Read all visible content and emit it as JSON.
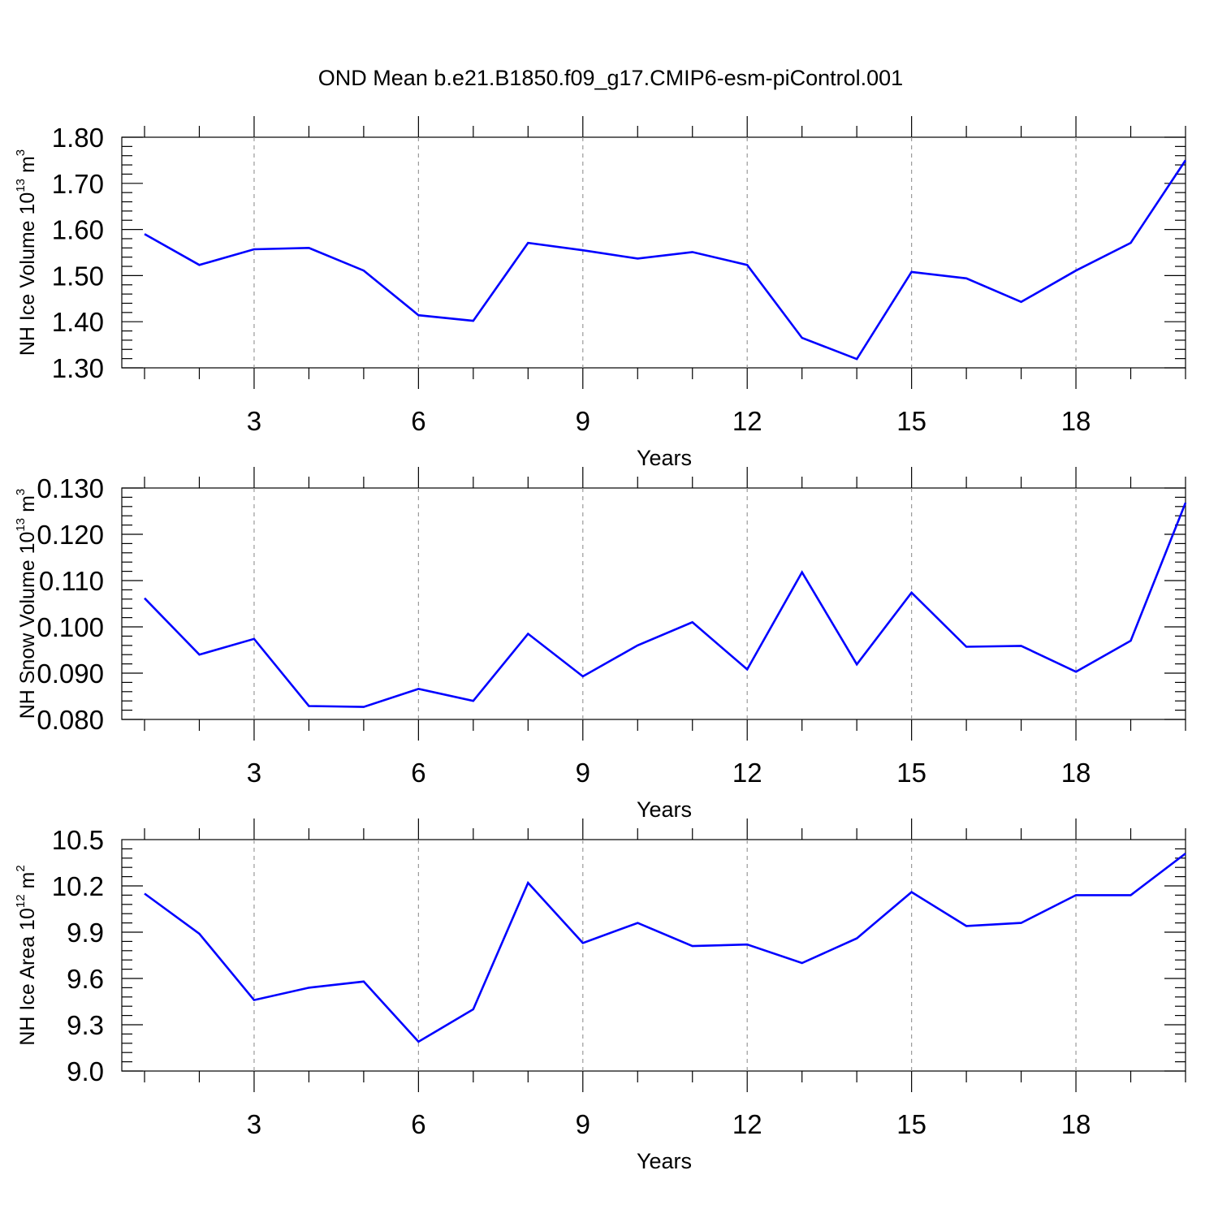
{
  "figure": {
    "title": "OND Mean b.e21.B1850.f09_g17.CMIP6-esm-piControl.001"
  },
  "colors": {
    "line": "#0000ff",
    "axis": "#000000",
    "grid": "#9a9a9a",
    "background": "#ffffff"
  },
  "chart_data": [
    {
      "type": "line",
      "xlabel": "Years",
      "ylabel": {
        "text": "NH Ice Volume 10",
        "exp": "13",
        "unit": " m",
        "unit_exp": "3"
      },
      "xlim": [
        1,
        20
      ],
      "ylim": [
        1.3,
        1.8
      ],
      "xticks": [
        3,
        6,
        9,
        12,
        15,
        18
      ],
      "xtick_labels": [
        "3",
        "6",
        "9",
        "12",
        "15",
        "18"
      ],
      "yticks": [
        1.3,
        1.4,
        1.5,
        1.6,
        1.7,
        1.8
      ],
      "ytick_labels": [
        "1.30",
        "1.40",
        "1.50",
        "1.60",
        "1.70",
        "1.80"
      ],
      "grid": "vertical dashed at major x ticks",
      "series": [
        {
          "name": "NH Ice Volume",
          "x": [
            1,
            2,
            3,
            4,
            5,
            6,
            7,
            8,
            9,
            10,
            11,
            12,
            13,
            14,
            15,
            16,
            17,
            18,
            19,
            20
          ],
          "values": [
            1.59,
            1.523,
            1.557,
            1.56,
            1.511,
            1.414,
            1.402,
            1.571,
            1.555,
            1.537,
            1.551,
            1.523,
            1.365,
            1.319,
            1.508,
            1.494,
            1.443,
            1.511,
            1.571,
            1.75
          ]
        }
      ]
    },
    {
      "type": "line",
      "xlabel": "Years",
      "ylabel": {
        "text": "NH Snow Volume 10",
        "exp": "13",
        "unit": " m",
        "unit_exp": "3"
      },
      "xlim": [
        1,
        20
      ],
      "ylim": [
        0.08,
        0.13
      ],
      "xticks": [
        3,
        6,
        9,
        12,
        15,
        18
      ],
      "xtick_labels": [
        "3",
        "6",
        "9",
        "12",
        "15",
        "18"
      ],
      "yticks": [
        0.08,
        0.09,
        0.1,
        0.11,
        0.12,
        0.13
      ],
      "ytick_labels": [
        "0.080",
        "0.090",
        "0.100",
        "0.110",
        "0.120",
        "0.130"
      ],
      "grid": "vertical dashed at major x ticks",
      "series": [
        {
          "name": "NH Snow Volume",
          "x": [
            1,
            2,
            3,
            4,
            5,
            6,
            7,
            8,
            9,
            10,
            11,
            12,
            13,
            14,
            15,
            16,
            17,
            18,
            19,
            20
          ],
          "values": [
            0.1062,
            0.094,
            0.0974,
            0.0829,
            0.0827,
            0.0866,
            0.084,
            0.0985,
            0.0893,
            0.096,
            0.101,
            0.0908,
            0.1118,
            0.0919,
            0.1074,
            0.0957,
            0.0959,
            0.0903,
            0.097,
            0.1268
          ]
        }
      ]
    },
    {
      "type": "line",
      "xlabel": "Years",
      "ylabel": {
        "text": "NH Ice Area 10",
        "exp": "12",
        "unit": " m",
        "unit_exp": "2"
      },
      "xlim": [
        1,
        20
      ],
      "ylim": [
        9.0,
        10.5
      ],
      "xticks": [
        3,
        6,
        9,
        12,
        15,
        18
      ],
      "xtick_labels": [
        "3",
        "6",
        "9",
        "12",
        "15",
        "18"
      ],
      "yticks": [
        9.0,
        9.3,
        9.6,
        9.9,
        10.2,
        10.5
      ],
      "ytick_labels": [
        "9.0",
        "9.3",
        "9.6",
        "9.9",
        "10.2",
        "10.5"
      ],
      "grid": "vertical dashed at major x ticks",
      "series": [
        {
          "name": "NH Ice Area",
          "x": [
            1,
            2,
            3,
            4,
            5,
            6,
            7,
            8,
            9,
            10,
            11,
            12,
            13,
            14,
            15,
            16,
            17,
            18,
            19,
            20
          ],
          "values": [
            10.15,
            9.89,
            9.46,
            9.54,
            9.58,
            9.19,
            9.4,
            10.22,
            9.83,
            9.96,
            9.81,
            9.82,
            9.7,
            9.86,
            10.16,
            9.94,
            9.96,
            10.14,
            10.14,
            10.41
          ]
        }
      ]
    }
  ]
}
